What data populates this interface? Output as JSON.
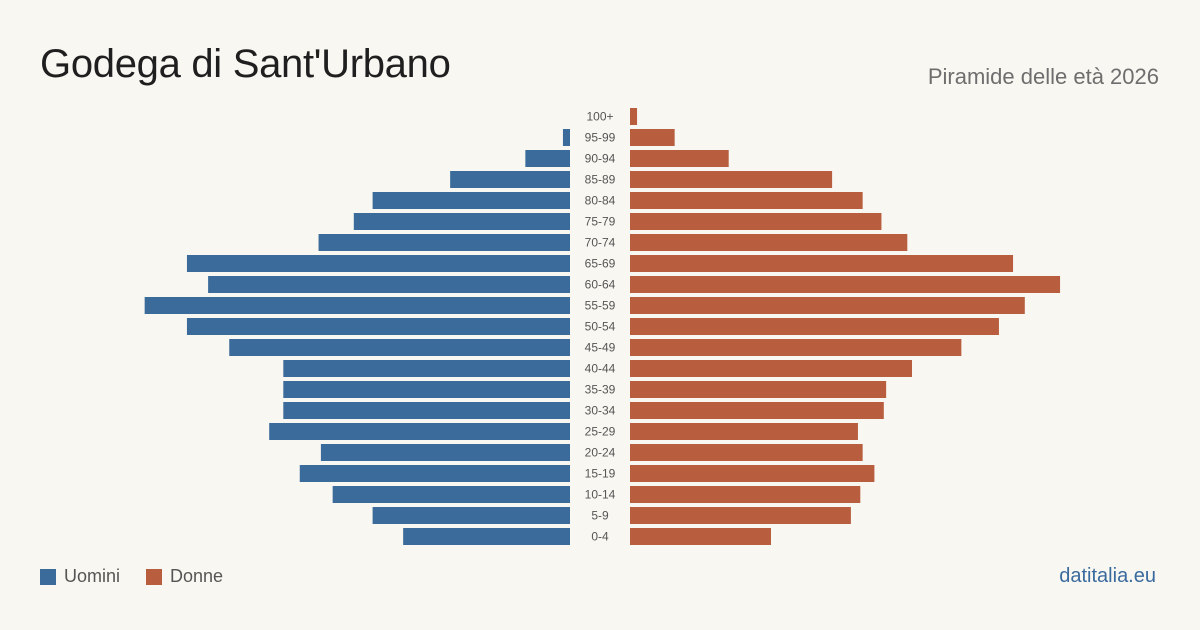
{
  "title": "Godega di Sant'Urbano",
  "subtitle": "Piramide delle età 2026",
  "brand": "datitalia.eu",
  "colors": {
    "male": "#3b6b9a",
    "female": "#b85d3d",
    "label": "#555555"
  },
  "legend": {
    "male": "Uomini",
    "female": "Donne"
  },
  "chart_data": {
    "type": "bar",
    "orientation": "horizontal-pyramid",
    "categories": [
      "100+",
      "95-99",
      "90-94",
      "85-89",
      "80-84",
      "75-79",
      "70-74",
      "65-69",
      "60-64",
      "55-59",
      "50-54",
      "45-49",
      "40-44",
      "35-39",
      "30-34",
      "25-29",
      "20-24",
      "15-19",
      "10-14",
      "5-9",
      "0-4"
    ],
    "series": [
      {
        "name": "Uomini",
        "values": [
          0,
          3,
          19,
          51,
          84,
          92,
          107,
          163,
          154,
          181,
          163,
          145,
          122,
          122,
          122,
          128,
          106,
          115,
          101,
          84,
          71
        ]
      },
      {
        "name": "Donne",
        "values": [
          3,
          19,
          42,
          86,
          99,
          107,
          118,
          163,
          183,
          168,
          157,
          141,
          120,
          109,
          108,
          97,
          99,
          104,
          98,
          94,
          60
        ]
      }
    ],
    "xlim": [
      0,
      200
    ],
    "grid": false,
    "legend_position": "bottom-left"
  }
}
